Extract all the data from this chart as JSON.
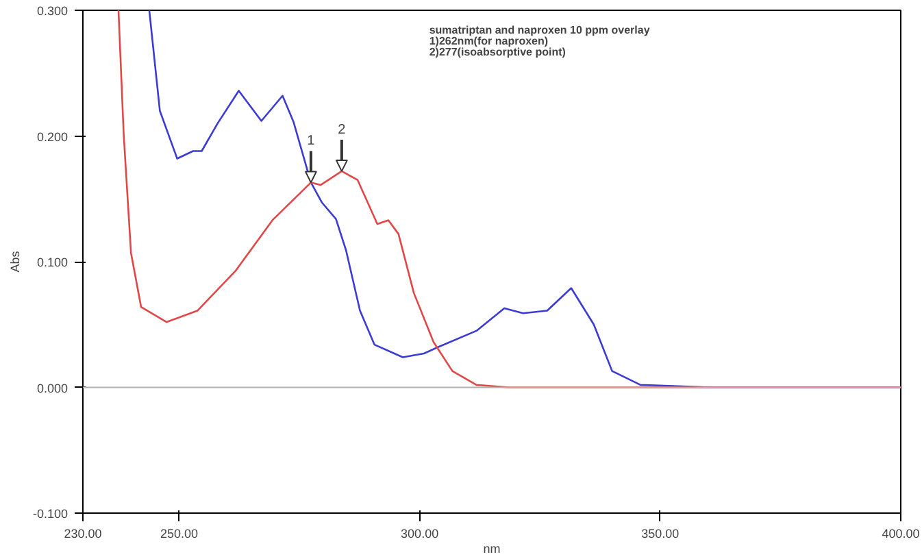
{
  "chart_data": {
    "type": "line",
    "xlabel": "nm",
    "ylabel": "Abs",
    "xlim": [
      230,
      400
    ],
    "ylim": [
      -0.1,
      0.3
    ],
    "xticks": [
      {
        "value": 230,
        "label": "230.00"
      },
      {
        "value": 250,
        "label": "250.00"
      },
      {
        "value": 300,
        "label": "300.00"
      },
      {
        "value": 350,
        "label": "350.00"
      },
      {
        "value": 400,
        "label": "400.00"
      }
    ],
    "yticks": [
      {
        "value": -0.1,
        "label": "-0.100"
      },
      {
        "value": 0,
        "label": "0.000"
      },
      {
        "value": 0.1,
        "label": "0.100"
      },
      {
        "value": 0.2,
        "label": "0.200"
      },
      {
        "value": 0.3,
        "label": "0.300"
      }
    ],
    "grid": false,
    "marker": "none",
    "line_style": "solid",
    "ref_lines": [
      {
        "axis": "y",
        "value": 0,
        "color": "#b0b0b0"
      }
    ],
    "annotations": [
      "sumatriptan and naproxen 10 ppm overlay",
      "1)262nm(for naproxen)",
      "2)277(isoabsorptive point)",
      {
        "text": "1",
        "x": 277.4,
        "y": 0.163
      },
      {
        "text": "2",
        "x": 283.8,
        "y": 0.172
      }
    ],
    "series": [
      {
        "color": "#3c3cd2",
        "x": [
          243.8,
          246,
          249.6,
          252.9,
          254.7,
          258,
          262.4,
          267.1,
          271.5,
          273.8,
          277.4,
          279.7,
          282.6,
          284.7,
          287.6,
          290.6,
          296.5,
          300.9,
          303.8,
          311.8,
          317.6,
          321.5,
          326.5,
          331.5,
          336.2,
          340,
          345.9,
          360.6,
          400
        ],
        "values": [
          0.3,
          0.22,
          0.182,
          0.188,
          0.188,
          0.21,
          0.236,
          0.212,
          0.232,
          0.211,
          0.163,
          0.147,
          0.134,
          0.109,
          0.061,
          0.034,
          0.024,
          0.027,
          0.032,
          0.045,
          0.063,
          0.059,
          0.061,
          0.079,
          0.05,
          0.013,
          0.002,
          0,
          0
        ]
      },
      {
        "color": "#e04848",
        "x": [
          237.4,
          238.5,
          240,
          242.1,
          247.4,
          253.8,
          261.8,
          269.4,
          277.4,
          279.4,
          283.8,
          287.1,
          291.2,
          293.5,
          295.6,
          298.8,
          302.9,
          306.8,
          311.8,
          318.5,
          400
        ],
        "values": [
          0.3,
          0.2,
          0.107,
          0.064,
          0.052,
          0.061,
          0.093,
          0.133,
          0.163,
          0.161,
          0.172,
          0.165,
          0.13,
          0.133,
          0.122,
          0.075,
          0.036,
          0.013,
          0.002,
          0,
          0
        ]
      }
    ]
  }
}
